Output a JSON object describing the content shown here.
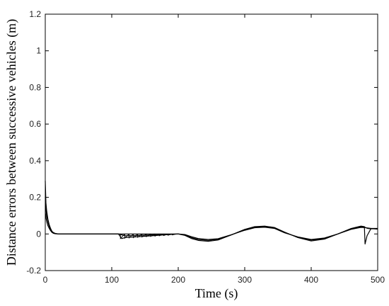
{
  "chart_data": {
    "type": "line",
    "title": "",
    "xlabel": "Time (s)",
    "ylabel": "Distance errors between successive vehicles (m)",
    "xlim": [
      0,
      500
    ],
    "ylim": [
      -0.2,
      1.2
    ],
    "xticks": [
      0,
      100,
      200,
      300,
      400,
      500
    ],
    "yticks": [
      -0.2,
      0,
      0.2,
      0.4,
      0.6,
      0.8,
      1,
      1.2
    ],
    "xtick_labels": [
      "0",
      "100",
      "200",
      "300",
      "400",
      "500"
    ],
    "ytick_labels": [
      "-0.2",
      "0",
      "0.2",
      "0.4",
      "0.6",
      "0.8",
      "1",
      "1.2"
    ],
    "grid": false,
    "legend": "none",
    "line_color": "#000000",
    "series": [
      {
        "x": [
          0,
          1,
          2,
          4,
          6,
          8,
          10,
          12,
          15,
          20,
          30,
          50,
          80,
          110,
          115,
          120,
          140,
          160,
          180,
          200,
          210,
          220,
          230,
          245,
          260,
          280,
          300,
          315,
          330,
          345,
          360,
          380,
          400,
          420,
          440,
          460,
          475,
          480,
          481,
          484,
          490,
          500
        ],
        "y": [
          0.29,
          0.17,
          0.13,
          0.08,
          0.05,
          0.03,
          0.015,
          0.008,
          0.003,
          0.0,
          0.0,
          0.0,
          0.0,
          0.0,
          -0.025,
          -0.02,
          -0.015,
          -0.01,
          -0.005,
          0.0,
          -0.008,
          -0.025,
          -0.035,
          -0.04,
          -0.033,
          -0.005,
          0.025,
          0.04,
          0.043,
          0.035,
          0.01,
          -0.02,
          -0.038,
          -0.028,
          0.0,
          0.03,
          0.043,
          0.04,
          -0.055,
          -0.01,
          0.03,
          0.03
        ]
      },
      {
        "x": [
          0,
          1,
          2,
          4,
          6,
          8,
          10,
          12,
          15,
          20,
          30,
          50,
          80,
          110,
          120,
          140,
          160,
          180,
          200,
          210,
          220,
          230,
          245,
          260,
          280,
          300,
          315,
          330,
          345,
          360,
          380,
          400,
          420,
          440,
          460,
          475,
          480,
          485,
          490,
          500
        ],
        "y": [
          0.2,
          0.13,
          0.1,
          0.065,
          0.04,
          0.025,
          0.012,
          0.006,
          0.002,
          0.0,
          0.0,
          0.0,
          0.0,
          0.0,
          -0.01,
          -0.008,
          -0.005,
          -0.002,
          0.0,
          -0.005,
          -0.02,
          -0.03,
          -0.035,
          -0.03,
          -0.005,
          0.022,
          0.038,
          0.04,
          0.032,
          0.008,
          -0.018,
          -0.033,
          -0.025,
          0.0,
          0.028,
          0.04,
          0.038,
          0.03,
          0.028,
          0.028
        ]
      },
      {
        "x": [
          0,
          1,
          2,
          4,
          6,
          8,
          10,
          12,
          15,
          20,
          30,
          50,
          80,
          110,
          200,
          210,
          220,
          230,
          245,
          260,
          280,
          300,
          315,
          330,
          345,
          360,
          380,
          400,
          420,
          440,
          460,
          475,
          480,
          490,
          500
        ],
        "y": [
          0.12,
          0.09,
          0.07,
          0.045,
          0.03,
          0.018,
          0.009,
          0.004,
          0.001,
          0.0,
          0.0,
          0.0,
          0.0,
          0.0,
          0.0,
          -0.003,
          -0.015,
          -0.025,
          -0.03,
          -0.026,
          -0.004,
          0.02,
          0.034,
          0.037,
          0.03,
          0.006,
          -0.016,
          -0.03,
          -0.022,
          0.0,
          0.025,
          0.036,
          0.035,
          0.03,
          0.026
        ]
      }
    ],
    "oscillation_band": {
      "x_start": 113,
      "x_end": 197,
      "period": 6.5,
      "amplitude_start": 0.025,
      "amplitude_end": 0.004
    }
  }
}
